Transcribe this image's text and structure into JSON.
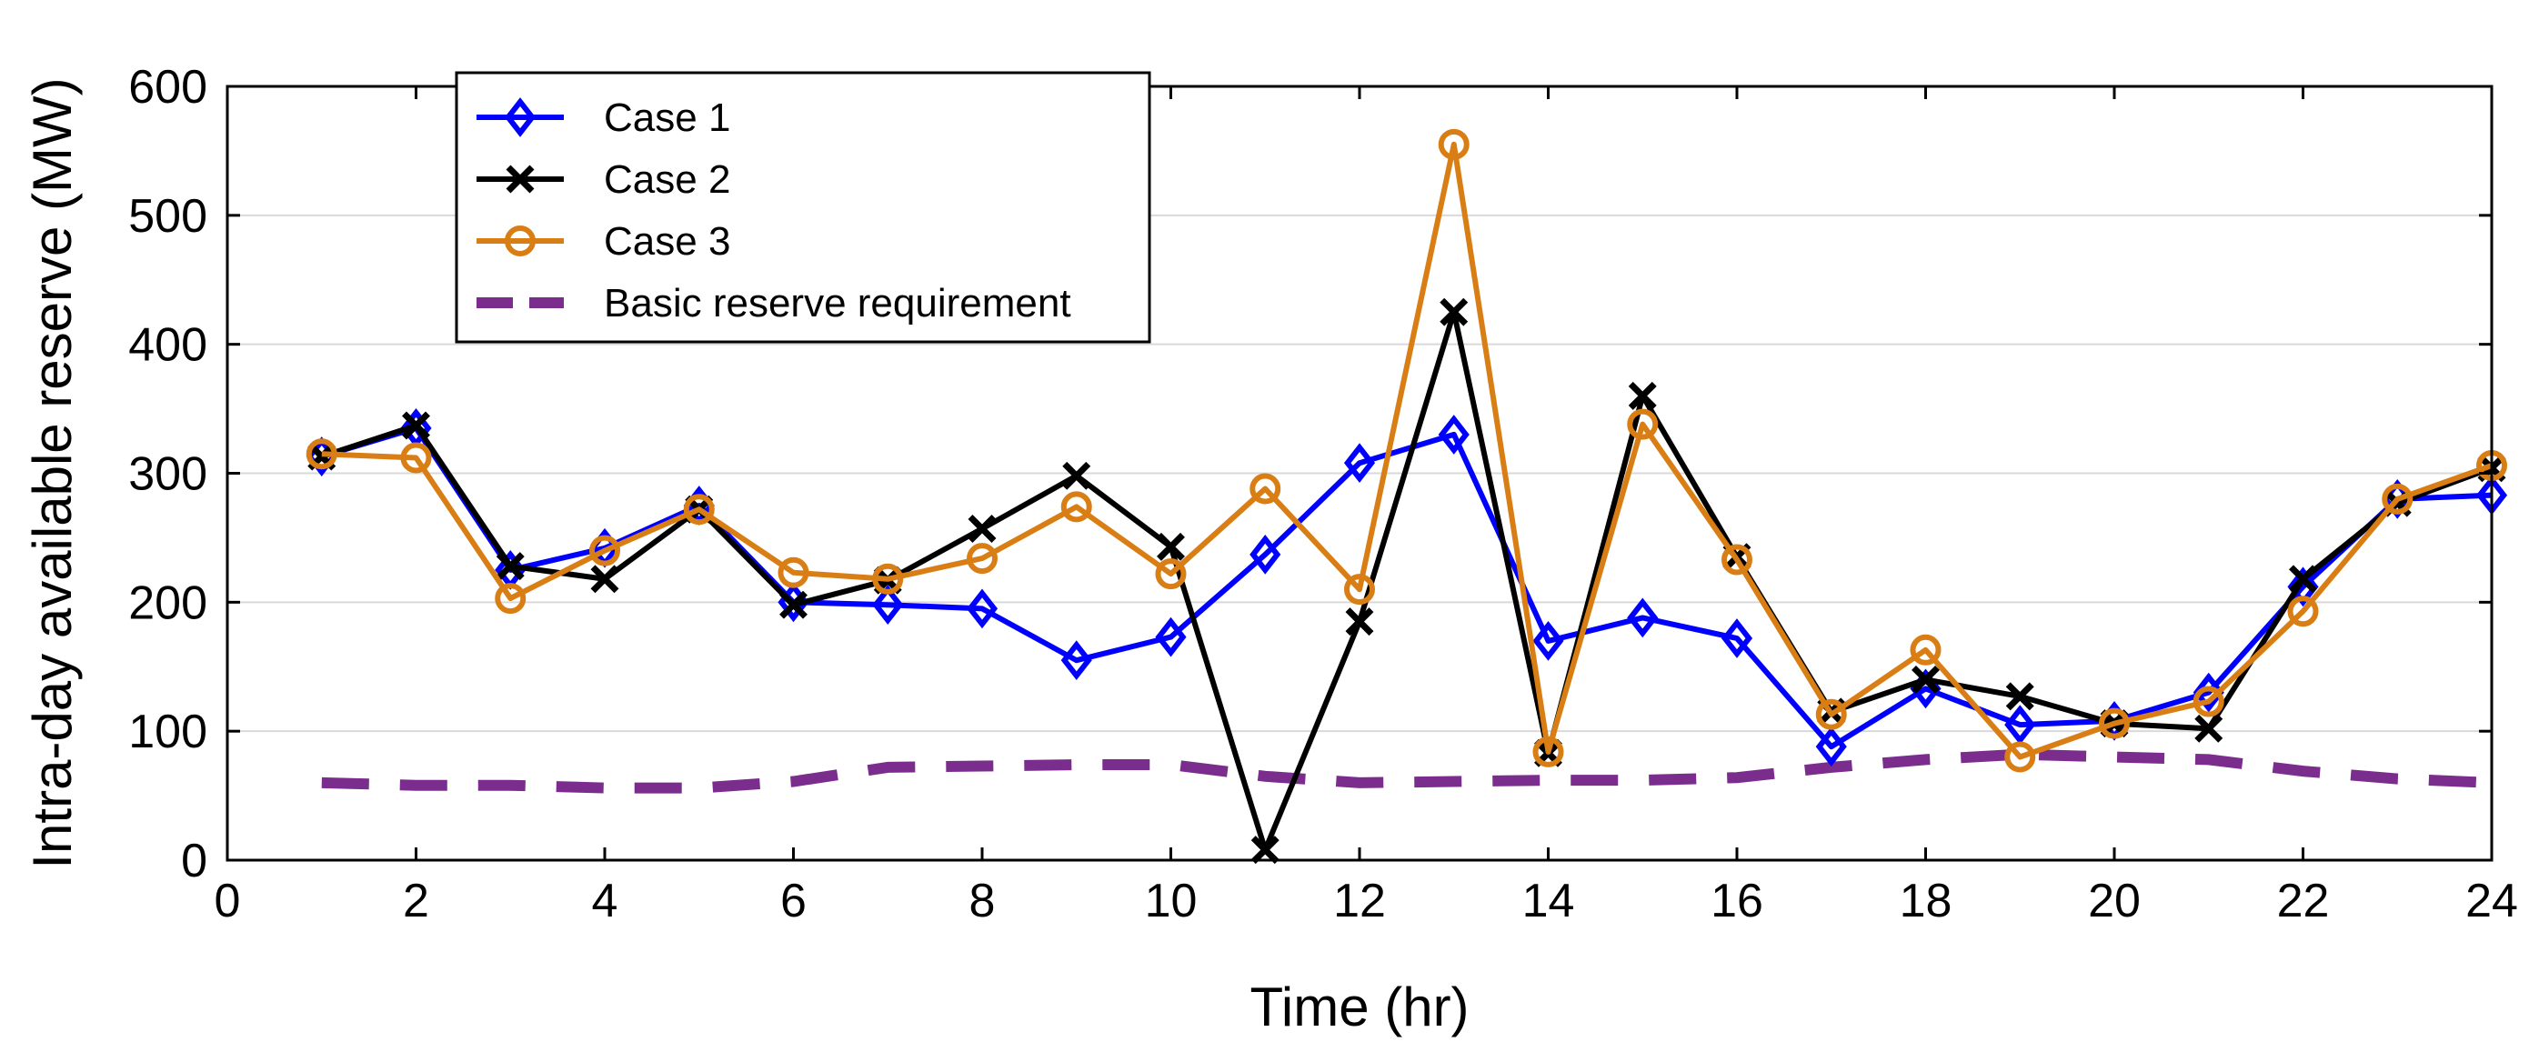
{
  "chart_data": {
    "type": "line",
    "title": "",
    "xlabel": "Time (hr)",
    "ylabel": "Intra-day available reserve (MW)",
    "xlim": [
      0,
      24
    ],
    "ylim": [
      0,
      600
    ],
    "xticks": [
      0,
      2,
      4,
      6,
      8,
      10,
      12,
      14,
      16,
      18,
      20,
      22,
      24
    ],
    "yticks": [
      0,
      100,
      200,
      300,
      400,
      500,
      600
    ],
    "grid": "horizontal",
    "legend_position": "top-left",
    "x": [
      1,
      2,
      3,
      4,
      5,
      6,
      7,
      8,
      9,
      10,
      11,
      12,
      13,
      14,
      15,
      16,
      17,
      18,
      19,
      20,
      21,
      22,
      23,
      24
    ],
    "series": [
      {
        "name": "Case 1",
        "color": "#0000ff",
        "marker": "diamond",
        "values": [
          313,
          335,
          225,
          242,
          275,
          200,
          198,
          195,
          155,
          173,
          237,
          308,
          330,
          170,
          188,
          172,
          88,
          133,
          105,
          108,
          130,
          212,
          280,
          283
        ]
      },
      {
        "name": "Case 2",
        "color": "#000000",
        "marker": "x",
        "values": [
          313,
          337,
          228,
          218,
          272,
          198,
          217,
          257,
          298,
          243,
          8,
          185,
          425,
          83,
          360,
          235,
          115,
          140,
          127,
          106,
          102,
          218,
          277,
          304
        ]
      },
      {
        "name": "Case 3",
        "color": "#d97e14",
        "marker": "circle",
        "values": [
          315,
          312,
          203,
          240,
          272,
          223,
          218,
          234,
          274,
          222,
          288,
          210,
          555,
          84,
          338,
          233,
          113,
          163,
          80,
          106,
          123,
          193,
          280,
          306
        ]
      },
      {
        "name": "Basic reserve requirement",
        "color": "#7b2d8e",
        "style": "dashed",
        "values": [
          60,
          58,
          58,
          56,
          56,
          61,
          72,
          73,
          74,
          74,
          65,
          60,
          61,
          62,
          62,
          64,
          72,
          78,
          82,
          80,
          78,
          69,
          63,
          60
        ]
      }
    ]
  }
}
